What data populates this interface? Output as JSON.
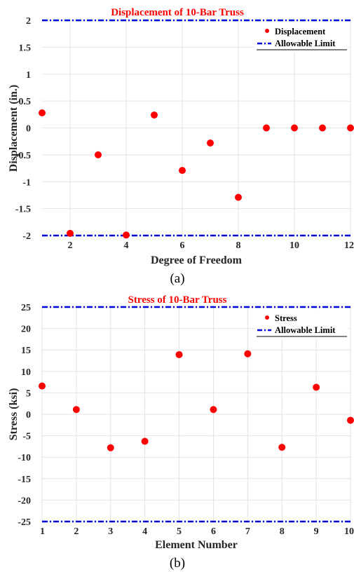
{
  "chart_data": [
    {
      "type": "scatter",
      "title": "Displacement of 10-Bar Truss",
      "xlabel": "Degree of Freedom",
      "ylabel": "Displacement (in.)",
      "caption": "(a)",
      "xlim": [
        1,
        12
      ],
      "ylim": [
        -2,
        2
      ],
      "xticks": [
        2,
        4,
        6,
        8,
        10,
        12
      ],
      "yticks": [
        -2,
        -1.5,
        -1,
        -0.5,
        0,
        0.5,
        1,
        1.5,
        2
      ],
      "grid": true,
      "legend_position": "top-right",
      "series": [
        {
          "name": "Displacement",
          "color": "#ff0000",
          "x": [
            1,
            2,
            3,
            4,
            5,
            6,
            7,
            8,
            9,
            10,
            11,
            12
          ],
          "y": [
            0.28,
            -1.96,
            -0.5,
            -1.99,
            0.24,
            -0.79,
            -0.28,
            -1.29,
            0,
            0,
            0,
            0
          ]
        }
      ],
      "limits": {
        "name": "Allowable Limit",
        "color": "#0000e6",
        "values": [
          2,
          -2
        ]
      }
    },
    {
      "type": "scatter",
      "title": "Stress of 10-Bar Truss",
      "xlabel": "Element Number",
      "ylabel": "Stress (ksi)",
      "caption": "(b)",
      "xlim": [
        1,
        10
      ],
      "ylim": [
        -25,
        25
      ],
      "xticks": [
        1,
        2,
        3,
        4,
        5,
        6,
        7,
        8,
        9,
        10
      ],
      "yticks": [
        -25,
        -20,
        -15,
        -10,
        -5,
        0,
        5,
        10,
        15,
        20,
        25
      ],
      "grid": true,
      "legend_position": "top-right",
      "series": [
        {
          "name": "Stress",
          "color": "#ff0000",
          "x": [
            1,
            2,
            3,
            4,
            5,
            6,
            7,
            8,
            9,
            10
          ],
          "y": [
            6.6,
            1.1,
            -7.8,
            -6.3,
            13.9,
            1.1,
            14.1,
            -7.7,
            6.3,
            -1.4
          ]
        }
      ],
      "limits": {
        "name": "Allowable Limit",
        "color": "#0000e6",
        "values": [
          25,
          -25
        ]
      }
    }
  ]
}
